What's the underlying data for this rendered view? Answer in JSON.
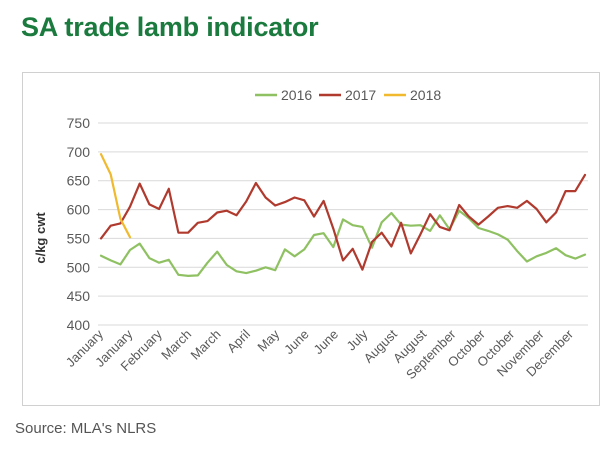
{
  "header": {
    "title": "SA trade lamb indicator"
  },
  "footer": {
    "source": "Source: MLA's NLRS"
  },
  "chart_data": {
    "type": "line",
    "title": "",
    "xlabel": "",
    "ylabel": "c/kg cwt",
    "ylim": [
      400,
      750
    ],
    "yticks": [
      400,
      450,
      500,
      550,
      600,
      650,
      700,
      750
    ],
    "grid": true,
    "legend_position": "top",
    "x_tick_labels": [
      "January",
      "January",
      "February",
      "March",
      "March",
      "April",
      "May",
      "June",
      "June",
      "July",
      "August",
      "August",
      "September",
      "October",
      "October",
      "November",
      "December"
    ],
    "series": [
      {
        "name": "2016",
        "color": "#8fc163",
        "values": [
          520,
          512,
          505,
          530,
          541,
          516,
          508,
          513,
          487,
          485,
          486,
          508,
          527,
          504,
          493,
          490,
          494,
          500,
          495,
          531,
          519,
          531,
          556,
          559,
          535,
          583,
          573,
          570,
          534,
          578,
          594,
          574,
          572,
          573,
          563,
          590,
          566,
          598,
          585,
          568,
          563,
          557,
          548,
          528,
          510,
          519,
          525,
          533,
          521,
          515,
          522
        ]
      },
      {
        "name": "2017",
        "color": "#b03a2e",
        "values": [
          550,
          572,
          576,
          605,
          645,
          609,
          601,
          636,
          560,
          560,
          577,
          580,
          595,
          598,
          590,
          614,
          646,
          621,
          607,
          613,
          621,
          616,
          588,
          615,
          567,
          512,
          532,
          496,
          544,
          560,
          536,
          577,
          524,
          557,
          592,
          570,
          564,
          608,
          588,
          574,
          588,
          603,
          606,
          603,
          615,
          601,
          578,
          595,
          632,
          632,
          660
        ]
      },
      {
        "name": "2018",
        "color": "#f0b92e",
        "values": [
          696,
          661,
          584,
          552
        ]
      }
    ]
  }
}
